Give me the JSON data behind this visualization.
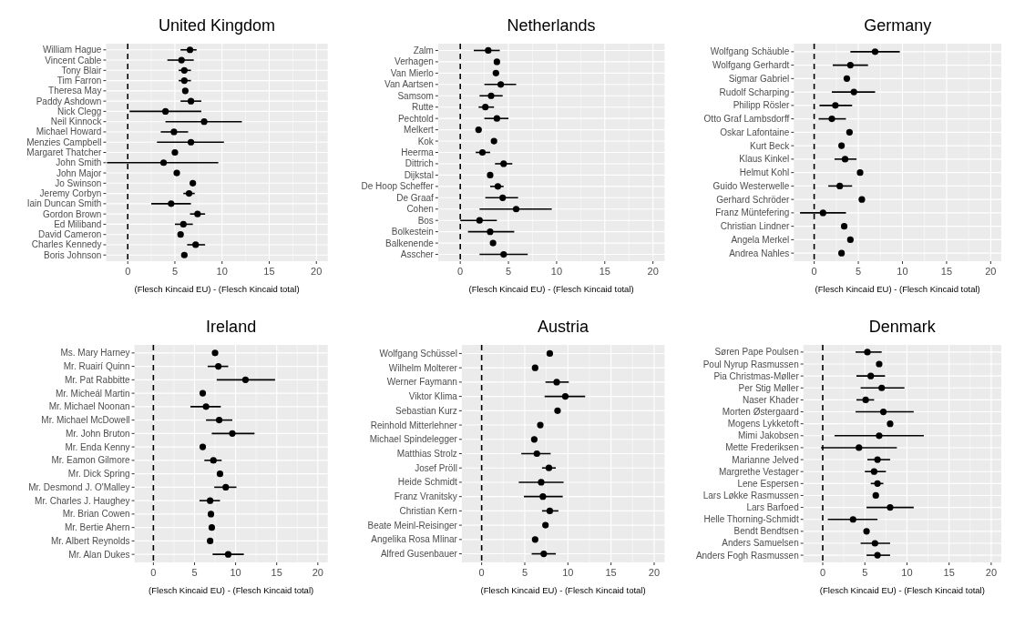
{
  "chart_data": [
    {
      "type": "scatter",
      "orientation": "horizontal",
      "title": "United Kingdom",
      "xlabel": "(Flesch Kincaid EU) - (Flesch Kincaid total)",
      "xlim": [
        -2.3,
        21.2
      ],
      "xticks": [
        0,
        5,
        10,
        15,
        20
      ],
      "grid": true,
      "marker": "circle",
      "ref_lines": [
        {
          "axis": "x",
          "value": 0,
          "line_style": "dashed",
          "color": "#000000"
        }
      ],
      "categories": [
        "William Hague",
        "Vincent Cable",
        "Tony Blair",
        "Tim Farron",
        "Theresa May",
        "Paddy Ashdown",
        "Nick Clegg",
        "Neil Kinnock",
        "Michael Howard",
        "Menzies Campbell",
        "Margaret Thatcher",
        "John Smith",
        "John Major",
        "Jo Swinson",
        "Jeremy Corbyn",
        "Iain Duncan Smith",
        "Gordon Brown",
        "Ed Miliband",
        "David Cameron",
        "Charles Kennedy",
        "Boris Johnson"
      ],
      "series": [
        {
          "color": "#000000",
          "values": [
            6.6,
            5.7,
            6.0,
            6.0,
            6.1,
            6.7,
            4.0,
            8.1,
            4.9,
            6.7,
            5.0,
            3.8,
            5.2,
            6.9,
            6.5,
            4.6,
            7.4,
            5.9,
            5.6,
            7.2,
            6.0
          ],
          "errors": [
            [
              5.6,
              7.3
            ],
            [
              4.2,
              7.0
            ],
            [
              5.4,
              6.7
            ],
            [
              5.4,
              6.7
            ],
            null,
            [
              5.6,
              7.8
            ],
            [
              0.2,
              7.8
            ],
            [
              4.0,
              12.1
            ],
            [
              3.5,
              6.4
            ],
            [
              3.1,
              10.2
            ],
            null,
            [
              -2.2,
              9.6
            ],
            null,
            null,
            [
              5.9,
              7.1
            ],
            [
              2.5,
              6.7
            ],
            [
              6.6,
              8.2
            ],
            [
              5.0,
              6.9
            ],
            null,
            [
              6.3,
              8.2
            ],
            null
          ]
        }
      ]
    },
    {
      "type": "scatter",
      "orientation": "horizontal",
      "title": "Netherlands",
      "xlabel": "(Flesch Kincaid EU) - (Flesch Kincaid total)",
      "xlim": [
        -2.3,
        21.2
      ],
      "xticks": [
        0,
        5,
        10,
        15,
        20
      ],
      "grid": true,
      "marker": "circle",
      "ref_lines": [
        {
          "axis": "x",
          "value": 0,
          "line_style": "dashed",
          "color": "#000000"
        }
      ],
      "categories": [
        "Zalm",
        "Verhagen",
        "Van Mierlo",
        "Van Aartsen",
        "Samsom",
        "Rutte",
        "Pechtold",
        "Melkert",
        "Kok",
        "Heerma",
        "Dittrich",
        "Dijkstal",
        "De Hoop Scheffer",
        "De Graaf",
        "Cohen",
        "Bos",
        "Bolkestein",
        "Balkenende",
        "Asscher"
      ],
      "series": [
        {
          "color": "#000000",
          "values": [
            2.9,
            3.8,
            3.7,
            4.2,
            3.2,
            2.6,
            3.8,
            1.9,
            3.5,
            2.3,
            4.5,
            3.1,
            3.9,
            4.4,
            5.8,
            2.0,
            3.1,
            3.4,
            4.5
          ],
          "errors": [
            [
              1.4,
              4.1
            ],
            null,
            null,
            [
              2.5,
              5.8
            ],
            [
              2.0,
              4.4
            ],
            [
              1.9,
              3.5
            ],
            [
              2.5,
              5.0
            ],
            null,
            null,
            [
              1.6,
              3.1
            ],
            [
              3.6,
              5.4
            ],
            null,
            [
              3.1,
              4.5
            ],
            [
              2.6,
              6.0
            ],
            [
              2.0,
              9.5
            ],
            [
              0.0,
              3.8
            ],
            [
              0.8,
              5.6
            ],
            null,
            [
              2.0,
              7.0
            ]
          ]
        }
      ]
    },
    {
      "type": "scatter",
      "orientation": "horizontal",
      "title": "Germany",
      "xlabel": "(Flesch Kincaid EU) - (Flesch Kincaid total)",
      "xlim": [
        -2.3,
        21.2
      ],
      "xticks": [
        0,
        5,
        10,
        15,
        20
      ],
      "grid": true,
      "marker": "circle",
      "ref_lines": [
        {
          "axis": "x",
          "value": 0,
          "line_style": "dashed",
          "color": "#000000"
        }
      ],
      "categories": [
        "Wolfgang Schäuble",
        "Wolfgang Gerhardt",
        "Sigmar Gabriel",
        "Rudolf Scharping",
        "Philipp Rösler",
        "Otto Graf Lambsdorff",
        "Oskar Lafontaine",
        "Kurt Beck",
        "Klaus Kinkel",
        "Helmut Kohl",
        "Guido Westerwelle",
        "Gerhard Schröder",
        "Franz Müntefering",
        "Christian Lindner",
        "Angela Merkel",
        "Andrea Nahles"
      ],
      "series": [
        {
          "color": "#000000",
          "values": [
            6.9,
            4.1,
            3.7,
            4.5,
            2.4,
            2.0,
            4.0,
            3.1,
            3.5,
            5.2,
            2.9,
            5.4,
            1.0,
            3.4,
            4.1,
            3.1
          ],
          "errors": [
            [
              4.1,
              9.7
            ],
            [
              2.1,
              6.1
            ],
            null,
            [
              2.0,
              6.9
            ],
            [
              0.6,
              4.3
            ],
            [
              0.5,
              3.6
            ],
            null,
            null,
            [
              2.3,
              4.8
            ],
            null,
            [
              1.6,
              4.3
            ],
            null,
            [
              -1.6,
              3.6
            ],
            null,
            null,
            null
          ]
        }
      ]
    },
    {
      "type": "scatter",
      "orientation": "horizontal",
      "title": "Ireland",
      "xlabel": "(Flesch Kincaid EU) - (Flesch Kincaid total)",
      "xlim": [
        -2.3,
        21.2
      ],
      "xticks": [
        0,
        5,
        10,
        15,
        20
      ],
      "grid": true,
      "marker": "circle",
      "ref_lines": [
        {
          "axis": "x",
          "value": 0,
          "line_style": "dashed",
          "color": "#000000"
        }
      ],
      "categories": [
        "Ms. Mary Harney",
        "Mr. Ruairí Quinn",
        "Mr. Pat Rabbitte",
        "Mr. Micheál Martin",
        "Mr. Michael Noonan",
        "Mr. Michael McDowell",
        "Mr. John Bruton",
        "Mr. Enda Kenny",
        "Mr. Eamon Gilmore",
        "Mr. Dick Spring",
        "Mr. Desmond J. O'Malley",
        "Mr. Charles J. Haughey",
        "Mr. Brian Cowen",
        "Mr. Bertie Ahern",
        "Mr. Albert Reynolds",
        "Mr. Alan Dukes"
      ],
      "series": [
        {
          "color": "#000000",
          "values": [
            7.5,
            7.9,
            11.2,
            6.0,
            6.4,
            8.0,
            9.6,
            6.0,
            7.3,
            8.1,
            8.8,
            6.9,
            7.0,
            7.1,
            6.9,
            9.1
          ],
          "errors": [
            null,
            [
              6.6,
              9.1
            ],
            [
              7.7,
              14.8
            ],
            null,
            [
              4.5,
              8.2
            ],
            [
              6.4,
              9.6
            ],
            [
              7.1,
              12.3
            ],
            null,
            [
              6.2,
              8.3
            ],
            null,
            [
              7.4,
              10.1
            ],
            [
              5.6,
              8.1
            ],
            null,
            null,
            null,
            [
              7.2,
              11.0
            ]
          ]
        }
      ]
    },
    {
      "type": "scatter",
      "orientation": "horizontal",
      "title": "Austria",
      "xlabel": "(Flesch Kincaid EU) - (Flesch Kincaid total)",
      "xlim": [
        -2.3,
        21.2
      ],
      "xticks": [
        0,
        5,
        10,
        15,
        20
      ],
      "grid": true,
      "marker": "circle",
      "ref_lines": [
        {
          "axis": "x",
          "value": 0,
          "line_style": "dashed",
          "color": "#000000"
        }
      ],
      "categories": [
        "Wolfgang Schüssel",
        "Wilhelm Molterer",
        "Werner Faymann",
        "Viktor Klima",
        "Sebastian Kurz",
        "Reinhold Mitterlehner",
        "Michael Spindelegger",
        "Matthias Strolz",
        "Josef Pröll",
        "Heide Schmidt",
        "Franz Vranitsky",
        "Christian Kern",
        "Beate Meinl-Reisinger",
        "Angelika Rosa Mlinar",
        "Alfred Gusenbauer"
      ],
      "series": [
        {
          "color": "#000000",
          "values": [
            7.9,
            6.2,
            8.7,
            9.7,
            8.8,
            6.8,
            6.1,
            6.4,
            7.8,
            6.9,
            7.1,
            7.9,
            7.4,
            6.2,
            7.2
          ],
          "errors": [
            null,
            null,
            [
              7.4,
              10.1
            ],
            [
              7.3,
              12.0
            ],
            null,
            null,
            null,
            [
              4.6,
              8.0
            ],
            [
              7.0,
              8.6
            ],
            [
              4.3,
              9.5
            ],
            [
              4.9,
              9.4
            ],
            [
              7.0,
              8.9
            ],
            null,
            null,
            [
              5.8,
              8.6
            ]
          ]
        }
      ]
    },
    {
      "type": "scatter",
      "orientation": "horizontal",
      "title": "Denmark",
      "xlabel": "(Flesch Kincaid EU) - (Flesch Kincaid total)",
      "xlim": [
        -2.3,
        21.2
      ],
      "xticks": [
        0,
        5,
        10,
        15,
        20
      ],
      "grid": true,
      "marker": "circle",
      "ref_lines": [
        {
          "axis": "x",
          "value": 0,
          "line_style": "dashed",
          "color": "#000000"
        }
      ],
      "categories": [
        "Søren Pape Poulsen",
        "Poul Nyrup Rasmussen",
        "Pia Christmas-Møller",
        "Per Stig Møller",
        "Naser Khader",
        "Morten Østergaard",
        "Mogens Lykketoft",
        "Mimi Jakobsen",
        "Mette Frederiksen",
        "Marianne Jelved",
        "Margrethe Vestager",
        "Lene Espersen",
        "Lars Løkke Rasmussen",
        "Lars Barfoed",
        "Helle Thorning-Schmidt",
        "Bendt Bendtsen",
        "Anders Samuelsen",
        "Anders Fogh Rasmussen"
      ],
      "series": [
        {
          "color": "#000000",
          "values": [
            5.3,
            6.7,
            5.7,
            7.0,
            5.1,
            7.2,
            8.0,
            6.7,
            4.3,
            6.5,
            6.1,
            6.5,
            6.3,
            8.0,
            3.6,
            5.2,
            6.2,
            6.5
          ],
          "errors": [
            [
              3.9,
              7.0
            ],
            null,
            [
              4.0,
              7.4
            ],
            [
              4.5,
              9.7
            ],
            [
              4.0,
              6.1
            ],
            [
              3.9,
              10.8
            ],
            null,
            [
              1.4,
              12.0
            ],
            [
              -0.2,
              8.8
            ],
            [
              5.3,
              8.0
            ],
            [
              5.0,
              7.5
            ],
            [
              5.7,
              7.2
            ],
            null,
            [
              5.2,
              10.8
            ],
            [
              0.6,
              6.5
            ],
            null,
            [
              4.5,
              8.0
            ],
            [
              5.2,
              8.0
            ]
          ]
        }
      ]
    }
  ]
}
